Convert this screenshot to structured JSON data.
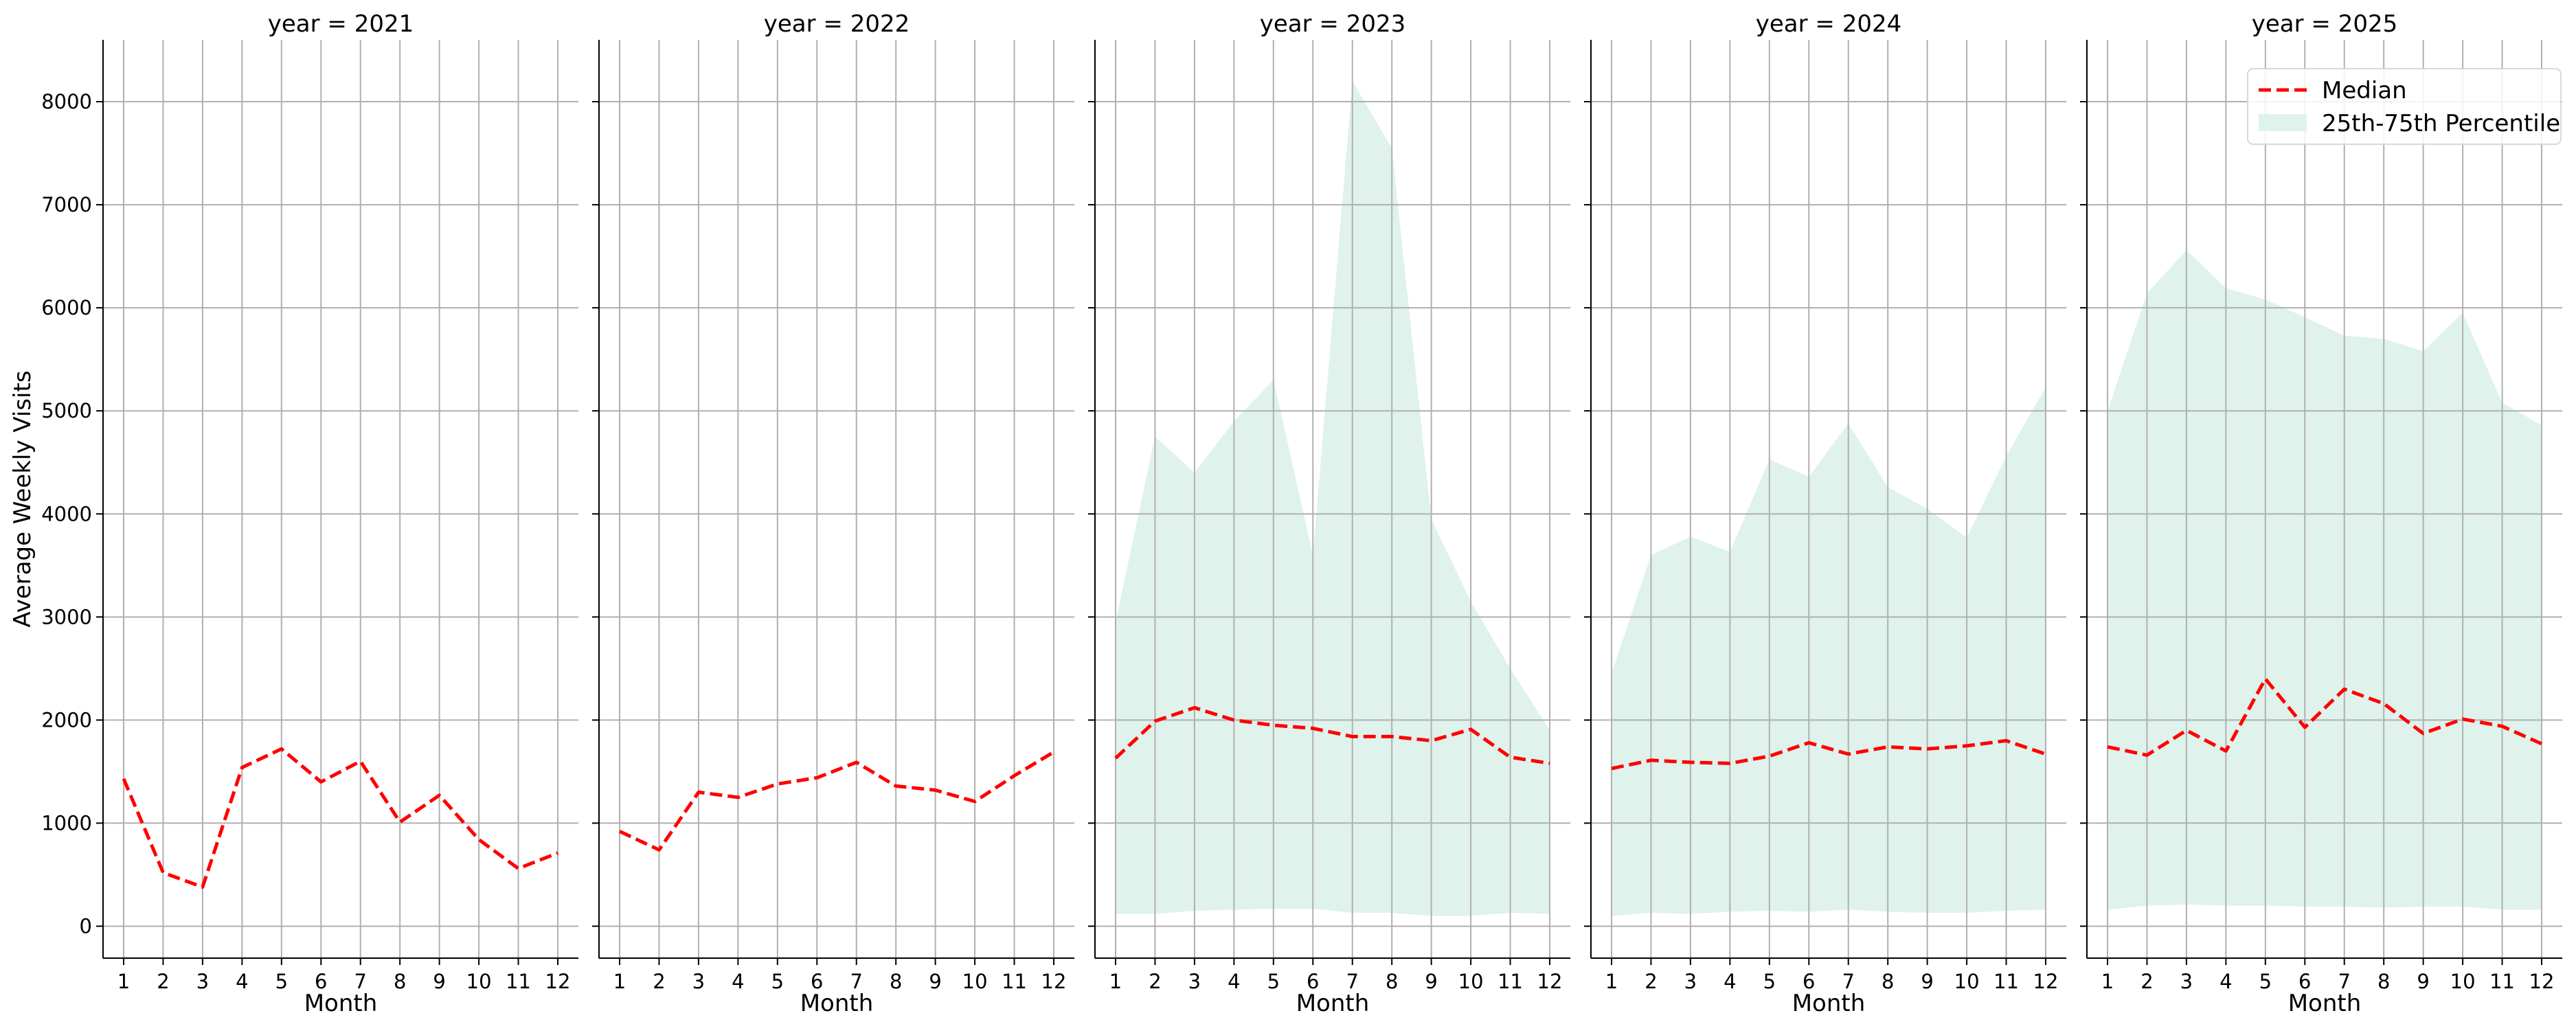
{
  "chart_data": {
    "type": "line",
    "ylabel": "Average Weekly Visits",
    "xlabel": "Month",
    "x": [
      1,
      2,
      3,
      4,
      5,
      6,
      7,
      8,
      9,
      10,
      11,
      12
    ],
    "x_tick_labels": [
      "1",
      "2",
      "3",
      "4",
      "5",
      "6",
      "7",
      "8",
      "9",
      "10",
      "11",
      "12"
    ],
    "ylim": [
      -310,
      8600
    ],
    "y_ticks": [
      0,
      1000,
      2000,
      3000,
      4000,
      5000,
      6000,
      7000,
      8000
    ],
    "grid": true,
    "shared_y": true,
    "legend": {
      "placement": "top-right of last panel",
      "entries": [
        {
          "label": "Median",
          "style": "dashed-line",
          "color": "#ff0000"
        },
        {
          "label": "25th-75th Percentile",
          "style": "filled-area",
          "color": "#dff2ec"
        }
      ]
    },
    "panels": [
      {
        "title": "year = 2021",
        "median": [
          1430,
          520,
          380,
          1540,
          1720,
          1400,
          1600,
          1010,
          1270,
          840,
          560,
          710
        ],
        "p25": null,
        "p75": null
      },
      {
        "title": "year = 2022",
        "median": [
          920,
          740,
          1300,
          1250,
          1380,
          1440,
          1590,
          1360,
          1320,
          1210,
          1460,
          1690
        ],
        "p25": null,
        "p75": null
      },
      {
        "title": "year = 2023",
        "median": [
          1630,
          1990,
          2120,
          2000,
          1950,
          1920,
          1840,
          1840,
          1800,
          1910,
          1640,
          1580
        ],
        "p25": [
          120,
          120,
          150,
          160,
          170,
          170,
          130,
          130,
          100,
          100,
          130,
          120
        ],
        "p75": [
          2950,
          4750,
          4400,
          4900,
          5300,
          3600,
          8200,
          7550,
          3950,
          3150,
          2500,
          1900
        ]
      },
      {
        "title": "year = 2024",
        "median": [
          1530,
          1610,
          1590,
          1580,
          1650,
          1780,
          1670,
          1740,
          1720,
          1750,
          1800,
          1670
        ],
        "p25": [
          100,
          130,
          120,
          140,
          150,
          140,
          160,
          140,
          130,
          130,
          150,
          160
        ],
        "p75": [
          2450,
          3600,
          3780,
          3630,
          4530,
          4360,
          4880,
          4260,
          4050,
          3770,
          4560,
          5230
        ]
      },
      {
        "title": "year = 2025",
        "median": [
          1740,
          1660,
          1900,
          1700,
          2400,
          1930,
          2300,
          2160,
          1870,
          2010,
          1940,
          1770
        ],
        "p25": [
          160,
          200,
          210,
          200,
          200,
          190,
          190,
          180,
          190,
          190,
          160,
          160
        ],
        "p75": [
          5000,
          6140,
          6560,
          6190,
          6080,
          5910,
          5730,
          5700,
          5580,
          5950,
          5080,
          4860
        ]
      }
    ]
  }
}
